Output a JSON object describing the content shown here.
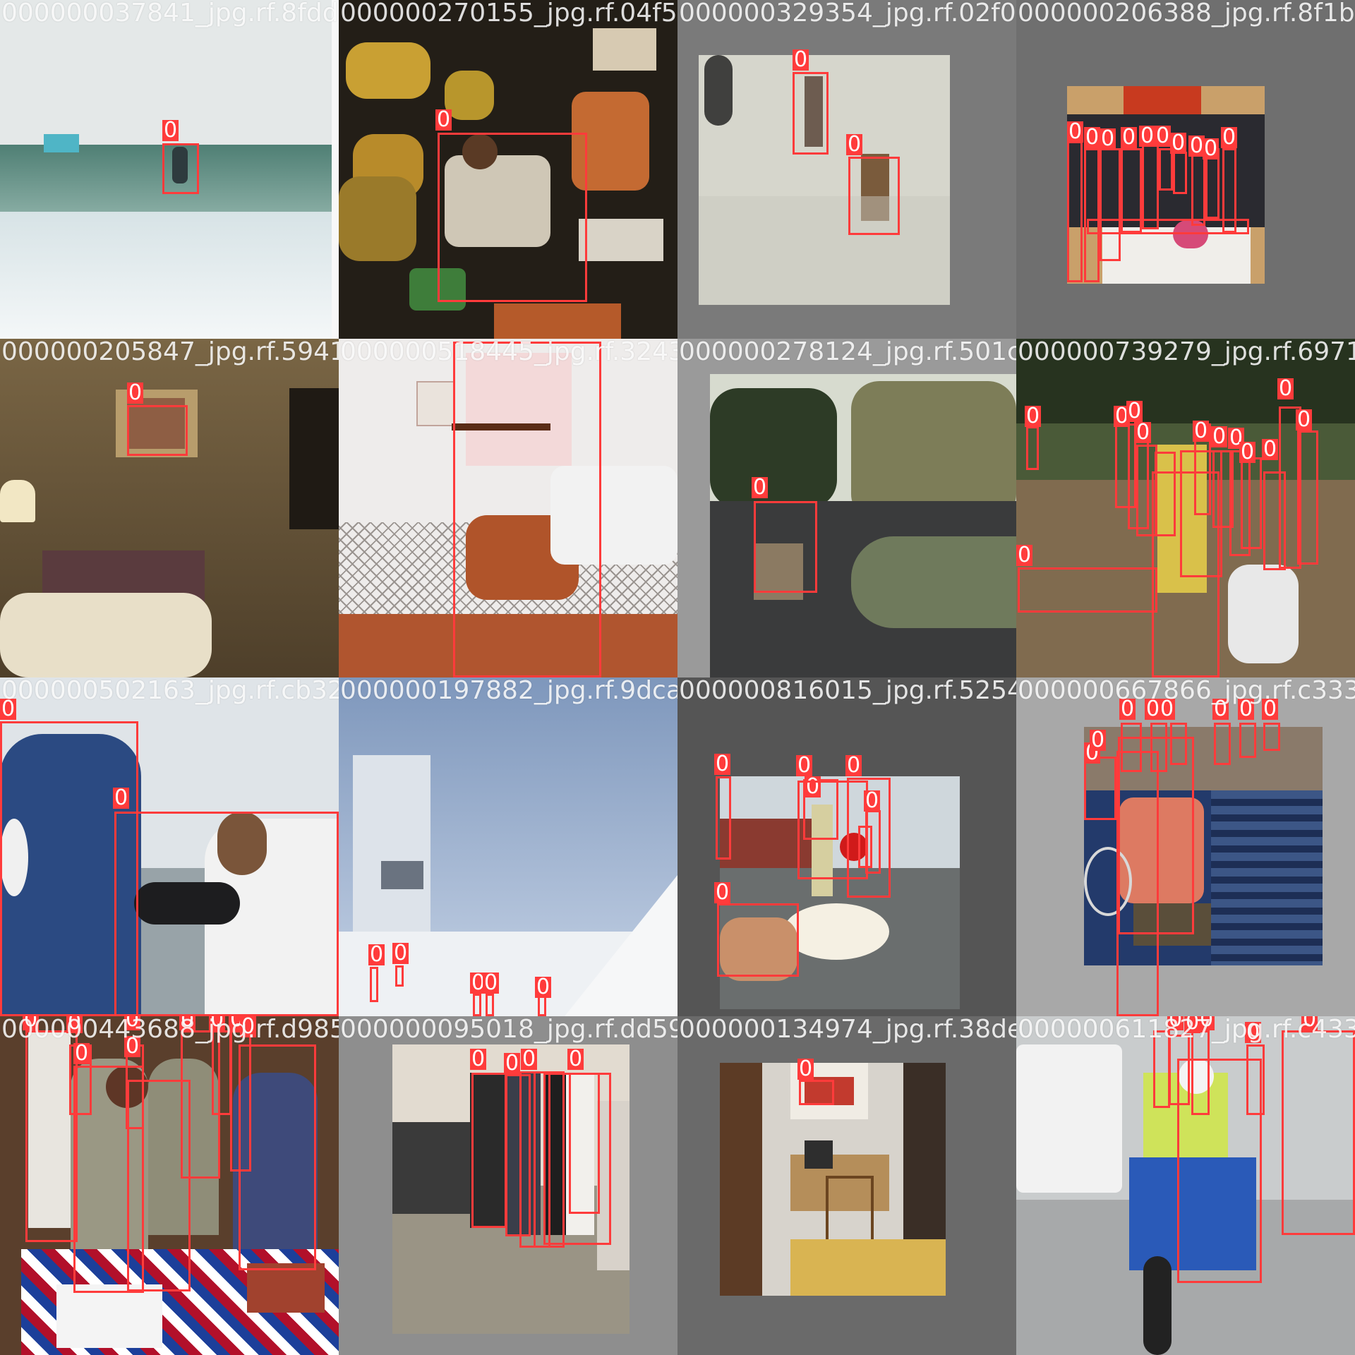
{
  "class_label": "0",
  "tiles": [
    {
      "filename": "000000037841_jpg.rf.8fdd48"
    },
    {
      "filename": "000000270155_jpg.rf.04f511"
    },
    {
      "filename": "000000329354_jpg.rf.02f0f1"
    },
    {
      "filename": "000000206388_jpg.rf.8f1b42"
    },
    {
      "filename": "000000205847_jpg.rf.5941be"
    },
    {
      "filename": "000000518445_jpg.rf.324306"
    },
    {
      "filename": "000000278124_jpg.rf.501c8d"
    },
    {
      "filename": "000000739279_jpg.rf.69717"
    },
    {
      "filename": "000000502163_jpg.rf.cb3257"
    },
    {
      "filename": "000000197882_jpg.rf.9dca9f"
    },
    {
      "filename": "000000816015_jpg.rf.5254c0"
    },
    {
      "filename": "000000667866_jpg.rf.c333e"
    },
    {
      "filename": "000000443688_jpg.rf.d9854"
    },
    {
      "filename": "000000095018_jpg.rf.dd5900"
    },
    {
      "filename": "000000134974_jpg.rf.38de5f"
    },
    {
      "filename": "000000611827_jpg.rf.c4337"
    }
  ]
}
